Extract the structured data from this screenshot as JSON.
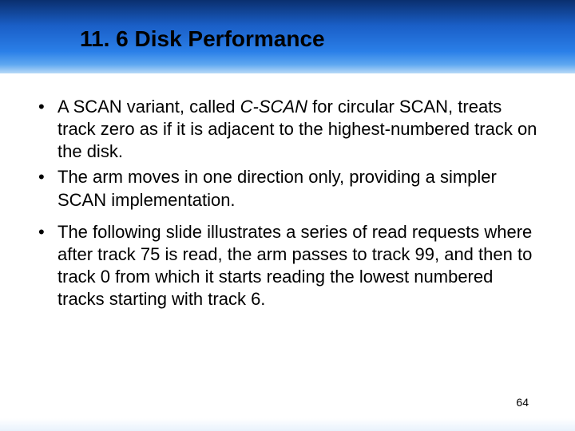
{
  "header": {
    "title": "11. 6 Disk Performance",
    "bg_top": "#0a2f6f",
    "bg_bottom": "#b8daf7"
  },
  "bullets": [
    {
      "pre": "A SCAN variant, called ",
      "em": "C-SCAN",
      "post": " for circular SCAN, treats track zero as if it is adjacent to the highest-numbered track on the disk."
    },
    {
      "text": "The arm moves in one direction only, providing a simpler SCAN implementation."
    },
    {
      "text": "The following slide illustrates a series of read requests where after track 75 is read, the arm passes to track 99, and then to track 0 from which it starts reading the lowest numbered tracks starting with track 6."
    }
  ],
  "page_number": "64",
  "style": {
    "title_fontsize": 28,
    "body_fontsize": 22,
    "text_color": "#000000",
    "bg_color": "#ffffff"
  }
}
